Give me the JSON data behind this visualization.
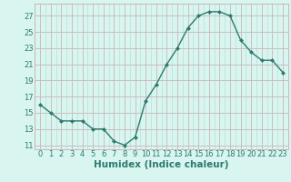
{
  "x": [
    0,
    1,
    2,
    3,
    4,
    5,
    6,
    7,
    8,
    9,
    10,
    11,
    12,
    13,
    14,
    15,
    16,
    17,
    18,
    19,
    20,
    21,
    22,
    23
  ],
  "y": [
    16,
    15,
    14,
    14,
    14,
    13,
    13,
    11.5,
    11,
    12,
    16.5,
    18.5,
    21,
    23,
    25.5,
    27,
    27.5,
    27.5,
    27,
    24,
    22.5,
    21.5,
    21.5,
    20
  ],
  "line_color": "#2d7a6e",
  "marker": "D",
  "marker_size": 2.0,
  "bg_color": "#d8f5f0",
  "grid_color": "#b8d8d0",
  "grid_major_color": "#c8b8b8",
  "xlabel": "Humidex (Indice chaleur)",
  "xlabel_fontsize": 7.5,
  "ytick_values": [
    11,
    13,
    15,
    17,
    19,
    21,
    23,
    25,
    27
  ],
  "xtick_values": [
    0,
    1,
    2,
    3,
    4,
    5,
    6,
    7,
    8,
    9,
    10,
    11,
    12,
    13,
    14,
    15,
    16,
    17,
    18,
    19,
    20,
    21,
    22,
    23
  ],
  "ylim": [
    10.5,
    28.5
  ],
  "xlim": [
    -0.5,
    23.5
  ],
  "tick_fontsize": 6,
  "line_width": 1.0
}
